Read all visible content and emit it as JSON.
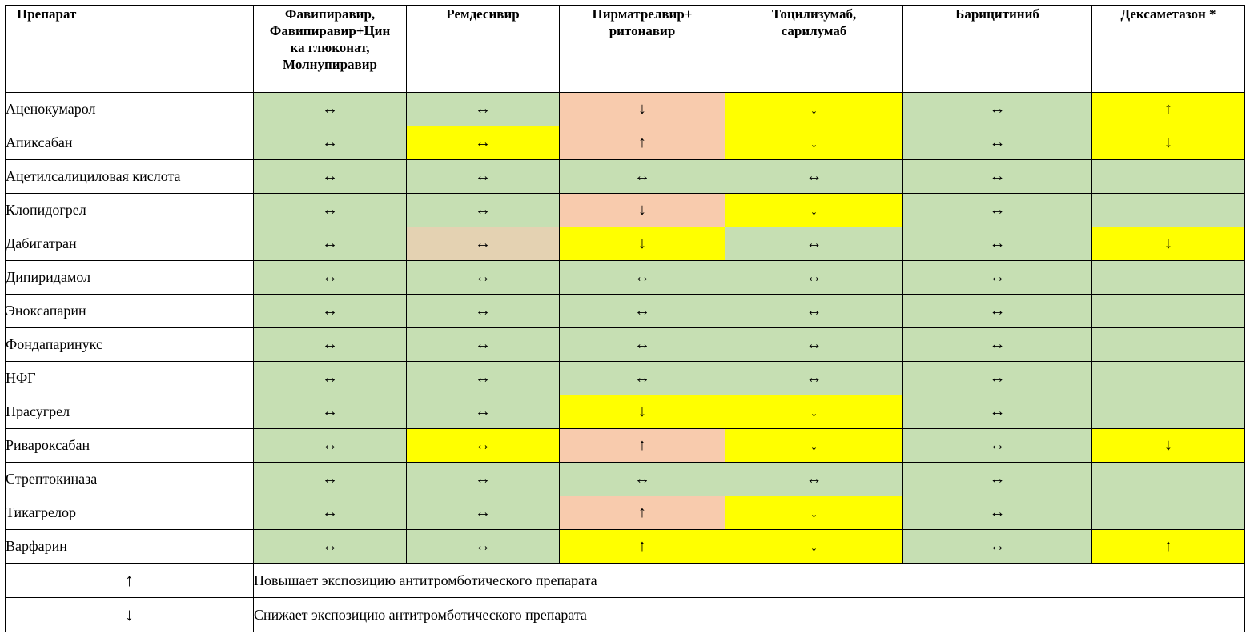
{
  "headers": [
    "Препарат",
    "Фавипиравир, Фавипиравир+Цинка глюконат, Молнупиравир",
    "Ремдесивир",
    "Нирматрелвир+ ритонавир",
    "Тоцилизумаб, сарилумаб",
    "Барицитиниб",
    "Дексаметазон *"
  ],
  "header_lines": [
    [
      "Препарат"
    ],
    [
      "Фавипиравир,",
      "Фавипиравир+Цин",
      "ка глюконат,",
      "Молнупиравир"
    ],
    [
      "Ремдесивир"
    ],
    [
      "Нирматрелвир+",
      "ритонавир"
    ],
    [
      "Тоцилизумаб,",
      "сарилумаб"
    ],
    [
      "Барицитиниб"
    ],
    [
      "Дексаметазон *"
    ]
  ],
  "colors": {
    "green": "#c6dfb3",
    "yellow": "#ffff00",
    "pink": "#f8cbad",
    "tan": "#e4d2b2"
  },
  "rows": [
    {
      "name": "Аценокумарол",
      "cells": [
        {
          "v": "↔",
          "c": "g"
        },
        {
          "v": "↔",
          "c": "g"
        },
        {
          "v": "↓",
          "c": "p"
        },
        {
          "v": "↓",
          "c": "y"
        },
        {
          "v": "↔",
          "c": "g"
        },
        {
          "v": "↑",
          "c": "y"
        }
      ]
    },
    {
      "name": "Апиксабан",
      "cells": [
        {
          "v": "↔",
          "c": "g"
        },
        {
          "v": "↔",
          "c": "y"
        },
        {
          "v": "↑",
          "c": "p"
        },
        {
          "v": "↓",
          "c": "y"
        },
        {
          "v": "↔",
          "c": "g"
        },
        {
          "v": "↓",
          "c": "y"
        }
      ]
    },
    {
      "name": "Ацетилсалициловая кислота",
      "cells": [
        {
          "v": "↔",
          "c": "g"
        },
        {
          "v": "↔",
          "c": "g"
        },
        {
          "v": "↔",
          "c": "g"
        },
        {
          "v": "↔",
          "c": "g"
        },
        {
          "v": "↔",
          "c": "g"
        },
        {
          "v": "",
          "c": "g"
        }
      ]
    },
    {
      "name": "Клопидогрел",
      "cells": [
        {
          "v": "↔",
          "c": "g"
        },
        {
          "v": "↔",
          "c": "g"
        },
        {
          "v": "↓",
          "c": "p"
        },
        {
          "v": "↓",
          "c": "y"
        },
        {
          "v": "↔",
          "c": "g"
        },
        {
          "v": "",
          "c": "g"
        }
      ]
    },
    {
      "name": "Дабигатран",
      "cells": [
        {
          "v": "↔",
          "c": "g"
        },
        {
          "v": "↔",
          "c": "t"
        },
        {
          "v": "↓",
          "c": "y"
        },
        {
          "v": "↔",
          "c": "g"
        },
        {
          "v": "↔",
          "c": "g"
        },
        {
          "v": "↓",
          "c": "y"
        }
      ]
    },
    {
      "name": "Дипиридамол",
      "cells": [
        {
          "v": "↔",
          "c": "g"
        },
        {
          "v": "↔",
          "c": "g"
        },
        {
          "v": "↔",
          "c": "g"
        },
        {
          "v": "↔",
          "c": "g"
        },
        {
          "v": "↔",
          "c": "g"
        },
        {
          "v": "",
          "c": "g"
        }
      ]
    },
    {
      "name": "Эноксапарин",
      "cells": [
        {
          "v": "↔",
          "c": "g"
        },
        {
          "v": "↔",
          "c": "g"
        },
        {
          "v": "↔",
          "c": "g"
        },
        {
          "v": "↔",
          "c": "g"
        },
        {
          "v": "↔",
          "c": "g"
        },
        {
          "v": "",
          "c": "g"
        }
      ]
    },
    {
      "name": "Фондапаринукс",
      "cells": [
        {
          "v": "↔",
          "c": "g"
        },
        {
          "v": "↔",
          "c": "g"
        },
        {
          "v": "↔",
          "c": "g"
        },
        {
          "v": "↔",
          "c": "g"
        },
        {
          "v": "↔",
          "c": "g"
        },
        {
          "v": "",
          "c": "g"
        }
      ]
    },
    {
      "name": "НФГ",
      "cells": [
        {
          "v": "↔",
          "c": "g"
        },
        {
          "v": "↔",
          "c": "g"
        },
        {
          "v": "↔",
          "c": "g"
        },
        {
          "v": "↔",
          "c": "g"
        },
        {
          "v": "↔",
          "c": "g"
        },
        {
          "v": "",
          "c": "g"
        }
      ]
    },
    {
      "name": "Прасугрел",
      "cells": [
        {
          "v": "↔",
          "c": "g"
        },
        {
          "v": "↔",
          "c": "g"
        },
        {
          "v": "↓",
          "c": "y"
        },
        {
          "v": "↓",
          "c": "y"
        },
        {
          "v": "↔",
          "c": "g"
        },
        {
          "v": "",
          "c": "g"
        }
      ]
    },
    {
      "name": "Ривароксабан",
      "cells": [
        {
          "v": "↔",
          "c": "g"
        },
        {
          "v": "↔",
          "c": "y"
        },
        {
          "v": "↑",
          "c": "p"
        },
        {
          "v": "↓",
          "c": "y"
        },
        {
          "v": "↔",
          "c": "g"
        },
        {
          "v": "↓",
          "c": "y"
        }
      ]
    },
    {
      "name": "Стрептокиназа",
      "cells": [
        {
          "v": "↔",
          "c": "g"
        },
        {
          "v": "↔",
          "c": "g"
        },
        {
          "v": "↔",
          "c": "g"
        },
        {
          "v": "↔",
          "c": "g"
        },
        {
          "v": "↔",
          "c": "g"
        },
        {
          "v": "",
          "c": "g"
        }
      ]
    },
    {
      "name": "Тикагрелор",
      "cells": [
        {
          "v": "↔",
          "c": "g"
        },
        {
          "v": "↔",
          "c": "g"
        },
        {
          "v": "↑",
          "c": "p"
        },
        {
          "v": "↓",
          "c": "y"
        },
        {
          "v": "↔",
          "c": "g"
        },
        {
          "v": "",
          "c": "g"
        }
      ]
    },
    {
      "name": "Варфарин",
      "cells": [
        {
          "v": "↔",
          "c": "g"
        },
        {
          "v": "↔",
          "c": "g"
        },
        {
          "v": "↑",
          "c": "y"
        },
        {
          "v": "↓",
          "c": "y"
        },
        {
          "v": "↔",
          "c": "g"
        },
        {
          "v": "↑",
          "c": "y"
        }
      ]
    }
  ],
  "legend": [
    {
      "symbol": "↑",
      "text": "Повышает экспозицию антитромботического препарата"
    },
    {
      "symbol": "↓",
      "text": "Снижает экспозицию антитромботического препарата"
    }
  ]
}
